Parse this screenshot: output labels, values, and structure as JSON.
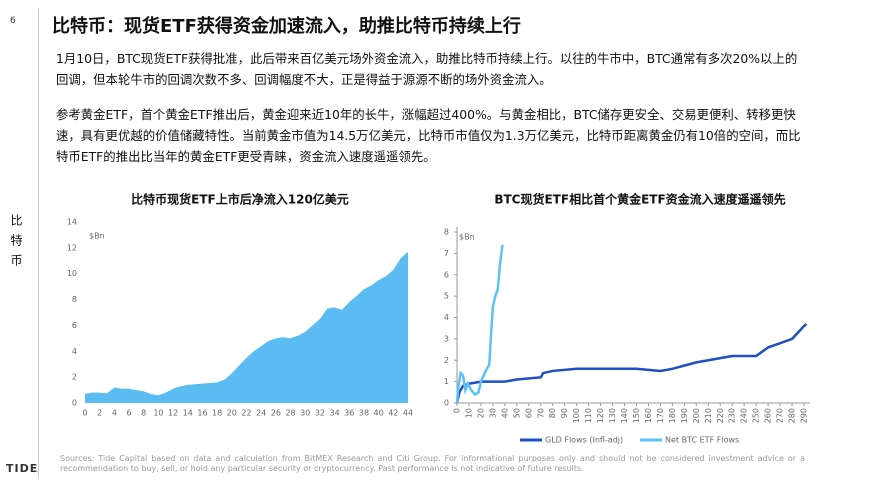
{
  "header": {
    "page_number": "6",
    "title": "比特币：现货ETF获得资金加速流入，助推比特币持续上行"
  },
  "side_label": "比特币",
  "paragraphs": [
    "1月10日，BTC现货ETF获得批准，此后带来百亿美元场外资金流入，助推比特币持续上行。以往的牛市中，BTC通常有多次20%以上的回调，但本轮牛市的回调次数不多、回调幅度不大，正是得益于源源不断的场外资金流入。",
    "参考黄金ETF，首个黄金ETF推出后，黄金迎来近10年的长牛，涨幅超过400%。与黄金相比，BTC储存更安全、交易更便利、转移更快速，具有更优越的价值储藏特性。当前黄金市值为14.5万亿美元，比特币市值仅为1.3万亿美元，比特币距离黄金仍有10倍的空间，而比特币ETF的推出比当年的黄金ETF更受青睐，资金流入速度遥遥领先。"
  ],
  "chart_data": [
    {
      "type": "area",
      "title": "比特币现货ETF上市后净流入120亿美元",
      "y_unit": "$Bn",
      "color": "#5bbcf2",
      "x": [
        0,
        1,
        2,
        3,
        4,
        5,
        6,
        7,
        8,
        9,
        10,
        11,
        12,
        13,
        14,
        15,
        16,
        17,
        18,
        19,
        20,
        21,
        22,
        23,
        24,
        25,
        26,
        27,
        28,
        29,
        30,
        31,
        32,
        33,
        34,
        35,
        36,
        37,
        38,
        39,
        40,
        41,
        42,
        43,
        44
      ],
      "values": [
        0.7,
        0.8,
        0.8,
        0.75,
        1.2,
        1.1,
        1.1,
        1.0,
        0.9,
        0.7,
        0.6,
        0.8,
        1.1,
        1.3,
        1.4,
        1.45,
        1.5,
        1.55,
        1.6,
        1.8,
        2.3,
        2.9,
        3.5,
        4.0,
        4.4,
        4.8,
        5.0,
        5.1,
        5.0,
        5.2,
        5.5,
        6.0,
        6.5,
        7.3,
        7.4,
        7.2,
        7.8,
        8.3,
        8.8,
        9.1,
        9.5,
        9.8,
        10.3,
        11.2,
        11.7
      ],
      "xlim": [
        0,
        44
      ],
      "xticks": [
        0,
        2,
        4,
        6,
        8,
        10,
        12,
        14,
        16,
        18,
        20,
        22,
        24,
        26,
        28,
        30,
        32,
        34,
        36,
        38,
        40,
        42,
        44
      ],
      "ylim": [
        0,
        14
      ],
      "yticks": [
        0,
        2,
        4,
        6,
        8,
        10,
        12,
        14
      ]
    },
    {
      "type": "line",
      "title": "BTC现货ETF相比首个黄金ETF资金流入速度遥遥领先",
      "y_unit": "$Bn",
      "series": [
        {
          "name": "GLD Flows (Infl-adj)",
          "color": "#1f4fc4",
          "x": [
            0,
            2,
            5,
            10,
            20,
            40,
            50,
            70,
            72,
            80,
            100,
            150,
            170,
            180,
            200,
            230,
            250,
            255,
            260,
            270,
            280,
            285,
            290,
            292
          ],
          "values": [
            0,
            0.5,
            0.8,
            0.9,
            1.0,
            1.0,
            1.1,
            1.2,
            1.4,
            1.5,
            1.6,
            1.6,
            1.5,
            1.6,
            1.9,
            2.2,
            2.2,
            2.4,
            2.6,
            2.8,
            3.0,
            3.3,
            3.6,
            3.7
          ]
        },
        {
          "name": "Net BTC ETF Flows",
          "color": "#5bc2f2",
          "x": [
            0,
            1,
            3,
            5,
            7,
            9,
            12,
            15,
            18,
            20,
            24,
            27,
            28,
            30,
            32,
            34,
            36,
            38
          ],
          "values": [
            0,
            0.7,
            1.4,
            1.3,
            0.6,
            0.9,
            0.6,
            0.4,
            0.5,
            1.0,
            1.5,
            1.8,
            2.8,
            4.5,
            5.0,
            5.3,
            6.5,
            7.4
          ]
        }
      ],
      "xlim": [
        0,
        295
      ],
      "xticks": [
        0,
        10,
        20,
        30,
        40,
        50,
        60,
        70,
        80,
        90,
        100,
        110,
        120,
        130,
        140,
        150,
        160,
        170,
        180,
        190,
        200,
        210,
        220,
        230,
        240,
        250,
        260,
        270,
        280,
        290
      ],
      "ylim": [
        0,
        8
      ],
      "yticks": [
        0,
        1,
        2,
        3,
        4,
        5,
        6,
        7,
        8
      ]
    }
  ],
  "sources": "Sources: Tide Capital based on data and calculation from BitMEX Research and Citi Group. For informational purposes only and should not be considered investment advice or a recommendation to buy, sell, or hold any particular security or cryptocurrency. Past performance is not indicative of future results.",
  "logo": "TIDE"
}
